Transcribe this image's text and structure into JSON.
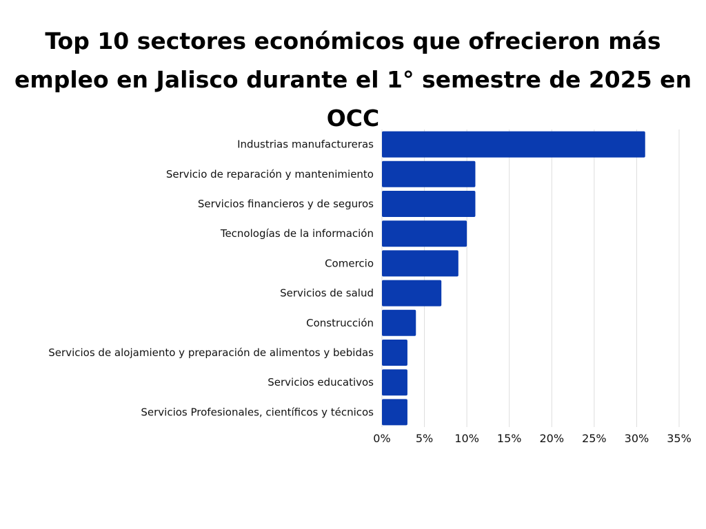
{
  "title": "Top 10 sectores económicos que ofrecieron más empleo en Jalisco durante el 1° semestre de 2025 en OCC",
  "colors": {
    "bar": "#0A3BB0",
    "grid": "#DDDDDD",
    "text": "#111111"
  },
  "chart_data": {
    "type": "bar",
    "orientation": "horizontal",
    "title": "Top 10 sectores económicos que ofrecieron más empleo en Jalisco durante el 1° semestre de 2025 en OCC",
    "categories": [
      "Industrias manufactureras",
      "Servicio de reparación y mantenimiento",
      "Servicios financieros y de seguros",
      "Tecnologías de la información",
      "Comercio",
      "Servicios de salud",
      "Construcción",
      "Servicios de alojamiento y preparación de alimentos y bebidas",
      "Servicios educativos",
      "Servicios Profesionales, científicos y técnicos"
    ],
    "values": [
      31,
      11,
      11,
      10,
      9,
      7,
      4,
      3,
      3,
      3
    ],
    "xlim": [
      0,
      35
    ],
    "ticks": [
      0,
      5,
      10,
      15,
      20,
      25,
      30,
      35
    ],
    "tick_labels": [
      "0%",
      "5%",
      "10%",
      "15%",
      "20%",
      "25%",
      "30%",
      "35%"
    ],
    "xlabel": "",
    "ylabel": "",
    "grid": true,
    "legend": false
  }
}
